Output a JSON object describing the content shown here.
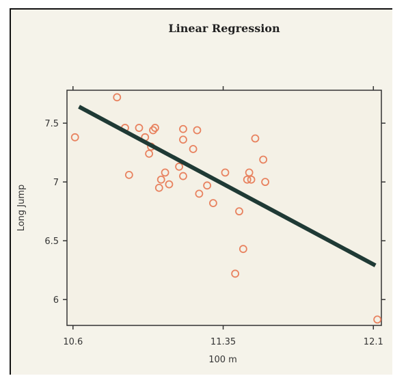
{
  "chart_data": {
    "type": "scatter",
    "title": "Linear Regression",
    "xlabel": "100 m",
    "ylabel": "Long Jump",
    "xlim": [
      10.57,
      12.14
    ],
    "ylim": [
      5.78,
      7.78
    ],
    "x_ticks": [
      10.6,
      11.35,
      12.1
    ],
    "x_tick_labels": [
      "10.6",
      "11.35",
      "12.1"
    ],
    "y_ticks": [
      6,
      6.5,
      7,
      7.5
    ],
    "y_tick_labels": [
      "6",
      "6.5",
      "7",
      "7.5"
    ],
    "grid": false,
    "point_color": "#e8825f",
    "line_color": "#1f3a35",
    "points": [
      {
        "x": 10.61,
        "y": 7.38
      },
      {
        "x": 10.82,
        "y": 7.72
      },
      {
        "x": 10.86,
        "y": 7.46
      },
      {
        "x": 10.88,
        "y": 7.06
      },
      {
        "x": 10.93,
        "y": 7.46
      },
      {
        "x": 10.96,
        "y": 7.38
      },
      {
        "x": 10.98,
        "y": 7.24
      },
      {
        "x": 10.99,
        "y": 7.3
      },
      {
        "x": 11.0,
        "y": 7.44
      },
      {
        "x": 11.01,
        "y": 7.46
      },
      {
        "x": 11.03,
        "y": 6.95
      },
      {
        "x": 11.04,
        "y": 7.02
      },
      {
        "x": 11.06,
        "y": 7.08
      },
      {
        "x": 11.08,
        "y": 6.98
      },
      {
        "x": 11.13,
        "y": 7.13
      },
      {
        "x": 11.15,
        "y": 7.45
      },
      {
        "x": 11.15,
        "y": 7.36
      },
      {
        "x": 11.15,
        "y": 7.05
      },
      {
        "x": 11.2,
        "y": 7.28
      },
      {
        "x": 11.22,
        "y": 7.44
      },
      {
        "x": 11.23,
        "y": 6.9
      },
      {
        "x": 11.27,
        "y": 6.97
      },
      {
        "x": 11.3,
        "y": 6.82
      },
      {
        "x": 11.36,
        "y": 7.08
      },
      {
        "x": 11.41,
        "y": 6.22
      },
      {
        "x": 11.43,
        "y": 6.75
      },
      {
        "x": 11.45,
        "y": 6.43
      },
      {
        "x": 11.47,
        "y": 7.02
      },
      {
        "x": 11.48,
        "y": 7.08
      },
      {
        "x": 11.49,
        "y": 7.02
      },
      {
        "x": 11.51,
        "y": 7.37
      },
      {
        "x": 11.55,
        "y": 7.19
      },
      {
        "x": 11.56,
        "y": 7.0
      },
      {
        "x": 12.12,
        "y": 5.83
      }
    ],
    "regression_line": {
      "x": [
        10.63,
        12.11
      ],
      "y": [
        7.64,
        6.29
      ]
    }
  }
}
